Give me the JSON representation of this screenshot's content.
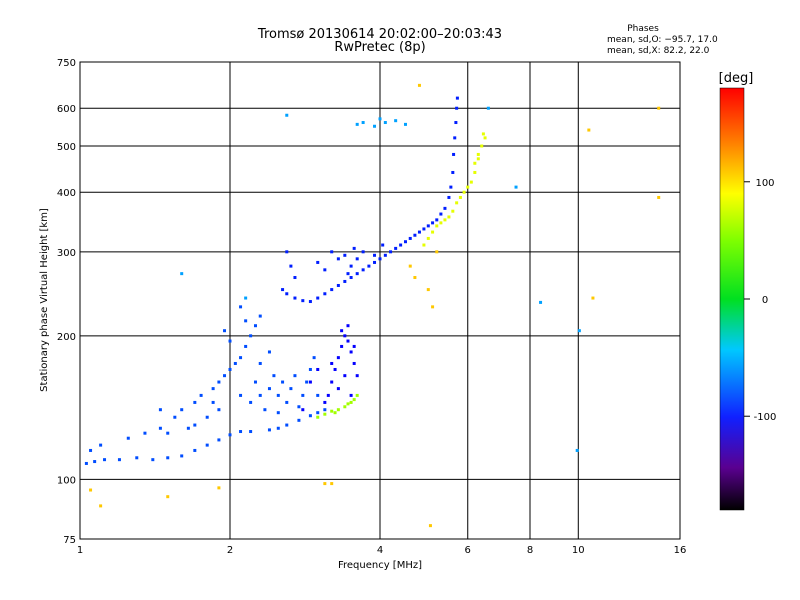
{
  "chart_data": {
    "type": "scatter",
    "title": "Tromsø 20130614 20:02:00–20:03:43",
    "subtitle": "RwPretec (8p)",
    "xlabel": "Frequency [MHz]",
    "ylabel": "Stationary phase Virtual Height [km]",
    "x_scale": "log",
    "y_scale": "log",
    "xlim": [
      1,
      16
    ],
    "ylim": [
      75,
      750
    ],
    "x_ticks": [
      1,
      2,
      4,
      6,
      8,
      10,
      16
    ],
    "y_ticks": [
      75,
      100,
      200,
      300,
      400,
      500,
      600,
      750
    ],
    "grid": true,
    "phase_box": {
      "title": "Phases",
      "line_o": "mean, sd,O: −95.7, 17.0",
      "line_x": "mean, sd,X:  82.2, 22.0"
    },
    "colorbar": {
      "label": "[deg]",
      "range": [
        -180,
        180
      ],
      "ticks": [
        100,
        0,
        -100
      ],
      "colormap": "rainbow"
    },
    "series": [
      {
        "trace": "lower",
        "color_deg": -105,
        "points": [
          [
            1.03,
            108
          ],
          [
            1.07,
            109
          ],
          [
            1.12,
            110
          ],
          [
            1.2,
            110
          ],
          [
            1.3,
            111
          ],
          [
            1.4,
            110
          ],
          [
            1.5,
            111
          ],
          [
            1.6,
            112
          ],
          [
            1.7,
            115
          ],
          [
            1.8,
            118
          ],
          [
            1.9,
            121
          ],
          [
            2.0,
            124
          ],
          [
            2.1,
            126
          ],
          [
            2.2,
            126
          ],
          [
            2.4,
            127
          ],
          [
            2.5,
            128
          ],
          [
            2.6,
            130
          ],
          [
            2.75,
            133
          ],
          [
            2.9,
            136
          ],
          [
            3.0,
            138
          ],
          [
            3.1,
            140
          ],
          [
            1.05,
            115
          ],
          [
            1.1,
            118
          ],
          [
            1.25,
            122
          ],
          [
            1.35,
            125
          ],
          [
            1.45,
            128
          ],
          [
            1.55,
            135
          ],
          [
            1.6,
            140
          ],
          [
            1.7,
            145
          ],
          [
            1.75,
            150
          ],
          [
            1.85,
            155
          ],
          [
            1.9,
            160
          ],
          [
            1.95,
            165
          ],
          [
            2.0,
            170
          ],
          [
            2.05,
            175
          ],
          [
            2.1,
            180
          ],
          [
            2.15,
            190
          ],
          [
            2.2,
            200
          ],
          [
            2.25,
            210
          ],
          [
            2.3,
            220
          ],
          [
            2.1,
            230
          ],
          [
            2.15,
            215
          ],
          [
            1.95,
            205
          ],
          [
            2.0,
            195
          ],
          [
            2.25,
            160
          ],
          [
            2.3,
            150
          ],
          [
            2.4,
            155
          ],
          [
            2.45,
            165
          ],
          [
            2.5,
            150
          ],
          [
            2.55,
            160
          ],
          [
            2.6,
            145
          ],
          [
            2.65,
            155
          ],
          [
            2.7,
            165
          ],
          [
            2.8,
            150
          ],
          [
            2.85,
            160
          ],
          [
            2.9,
            170
          ],
          [
            2.95,
            180
          ],
          [
            3.0,
            150
          ],
          [
            2.35,
            140
          ],
          [
            2.5,
            138
          ],
          [
            2.75,
            142
          ],
          [
            1.8,
            135
          ],
          [
            1.7,
            130
          ],
          [
            1.65,
            128
          ],
          [
            2.1,
            150
          ],
          [
            2.2,
            145
          ],
          [
            2.3,
            175
          ],
          [
            2.4,
            185
          ],
          [
            1.5,
            125
          ],
          [
            1.45,
            140
          ],
          [
            1.85,
            145
          ],
          [
            1.9,
            140
          ]
        ]
      },
      {
        "trace": "lower-violet",
        "color_deg": -130,
        "points": [
          [
            3.1,
            145
          ],
          [
            3.15,
            150
          ],
          [
            3.2,
            160
          ],
          [
            3.25,
            170
          ],
          [
            3.3,
            180
          ],
          [
            3.35,
            190
          ],
          [
            3.4,
            200
          ],
          [
            3.45,
            195
          ],
          [
            3.5,
            185
          ],
          [
            3.55,
            175
          ],
          [
            3.6,
            165
          ],
          [
            3.3,
            155
          ],
          [
            3.4,
            165
          ],
          [
            3.5,
            150
          ],
          [
            3.2,
            175
          ],
          [
            3.45,
            210
          ],
          [
            3.35,
            205
          ],
          [
            3.55,
            190
          ],
          [
            2.8,
            140
          ],
          [
            2.9,
            160
          ],
          [
            3.0,
            170
          ]
        ]
      },
      {
        "trace": "lower-green",
        "color_deg": 75,
        "points": [
          [
            3.0,
            135
          ],
          [
            3.1,
            137
          ],
          [
            3.2,
            139
          ],
          [
            3.3,
            140
          ],
          [
            3.4,
            142
          ],
          [
            3.5,
            145
          ],
          [
            3.55,
            147
          ],
          [
            3.6,
            150
          ],
          [
            3.25,
            138
          ],
          [
            3.45,
            144
          ]
        ]
      },
      {
        "trace": "upper",
        "color_deg": -120,
        "points": [
          [
            2.55,
            250
          ],
          [
            2.6,
            245
          ],
          [
            2.7,
            240
          ],
          [
            2.8,
            237
          ],
          [
            2.9,
            236
          ],
          [
            3.0,
            240
          ],
          [
            3.1,
            245
          ],
          [
            3.2,
            250
          ],
          [
            3.3,
            255
          ],
          [
            3.4,
            260
          ],
          [
            3.5,
            265
          ],
          [
            3.6,
            270
          ],
          [
            3.7,
            275
          ],
          [
            3.8,
            280
          ],
          [
            3.9,
            285
          ],
          [
            4.0,
            290
          ],
          [
            4.1,
            295
          ],
          [
            4.2,
            300
          ],
          [
            4.3,
            305
          ],
          [
            4.4,
            310
          ],
          [
            4.5,
            315
          ],
          [
            4.6,
            320
          ],
          [
            4.7,
            325
          ],
          [
            4.8,
            330
          ],
          [
            4.9,
            335
          ],
          [
            5.0,
            340
          ],
          [
            5.1,
            345
          ],
          [
            5.2,
            350
          ],
          [
            5.3,
            360
          ],
          [
            5.4,
            370
          ],
          [
            5.5,
            390
          ],
          [
            5.55,
            410
          ],
          [
            5.6,
            440
          ],
          [
            5.62,
            480
          ],
          [
            5.65,
            520
          ],
          [
            5.68,
            560
          ],
          [
            5.7,
            600
          ],
          [
            5.72,
            630
          ],
          [
            2.6,
            300
          ],
          [
            2.65,
            280
          ],
          [
            2.7,
            265
          ],
          [
            3.2,
            300
          ],
          [
            3.3,
            290
          ],
          [
            3.4,
            295
          ],
          [
            3.5,
            280
          ],
          [
            3.55,
            305
          ],
          [
            3.45,
            270
          ],
          [
            3.6,
            290
          ],
          [
            3.7,
            300
          ],
          [
            3.1,
            275
          ],
          [
            3.0,
            285
          ],
          [
            3.9,
            295
          ],
          [
            4.05,
            310
          ]
        ]
      },
      {
        "trace": "upper-yellow",
        "color_deg": 95,
        "points": [
          [
            4.9,
            310
          ],
          [
            5.0,
            320
          ],
          [
            5.1,
            330
          ],
          [
            5.2,
            340
          ],
          [
            5.3,
            345
          ],
          [
            5.4,
            350
          ],
          [
            5.5,
            355
          ],
          [
            5.6,
            365
          ],
          [
            5.7,
            380
          ],
          [
            5.9,
            400
          ],
          [
            6.1,
            420
          ],
          [
            6.2,
            440
          ],
          [
            6.3,
            470
          ],
          [
            6.4,
            500
          ],
          [
            6.45,
            530
          ],
          [
            6.5,
            520
          ],
          [
            6.2,
            460
          ],
          [
            6.3,
            480
          ],
          [
            5.8,
            390
          ],
          [
            6.0,
            410
          ]
        ]
      },
      {
        "trace": "scattered",
        "color_deg": -80,
        "points": [
          [
            3.9,
            550
          ],
          [
            4.1,
            560
          ],
          [
            4.3,
            565
          ],
          [
            4.5,
            555
          ],
          [
            3.6,
            555
          ],
          [
            3.7,
            560
          ],
          [
            2.6,
            580
          ],
          [
            1.6,
            270
          ],
          [
            2.15,
            240
          ],
          [
            4.0,
            570
          ],
          [
            6.6,
            600
          ],
          [
            10.05,
            205
          ],
          [
            8.4,
            235
          ],
          [
            7.5,
            410
          ],
          [
            9.95,
            115
          ]
        ]
      },
      {
        "trace": "outliers",
        "color_deg": 120,
        "points": [
          [
            4.8,
            670
          ],
          [
            5.2,
            300
          ],
          [
            5.0,
            250
          ],
          [
            5.1,
            230
          ],
          [
            4.6,
            280
          ],
          [
            4.7,
            265
          ],
          [
            14.5,
            600
          ],
          [
            14.5,
            390
          ],
          [
            10.5,
            540
          ],
          [
            10.7,
            240
          ],
          [
            5.05,
            80
          ],
          [
            3.2,
            98
          ],
          [
            1.5,
            92
          ],
          [
            1.9,
            96
          ],
          [
            1.05,
            95
          ],
          [
            1.1,
            88
          ],
          [
            3.1,
            98
          ]
        ]
      }
    ]
  }
}
